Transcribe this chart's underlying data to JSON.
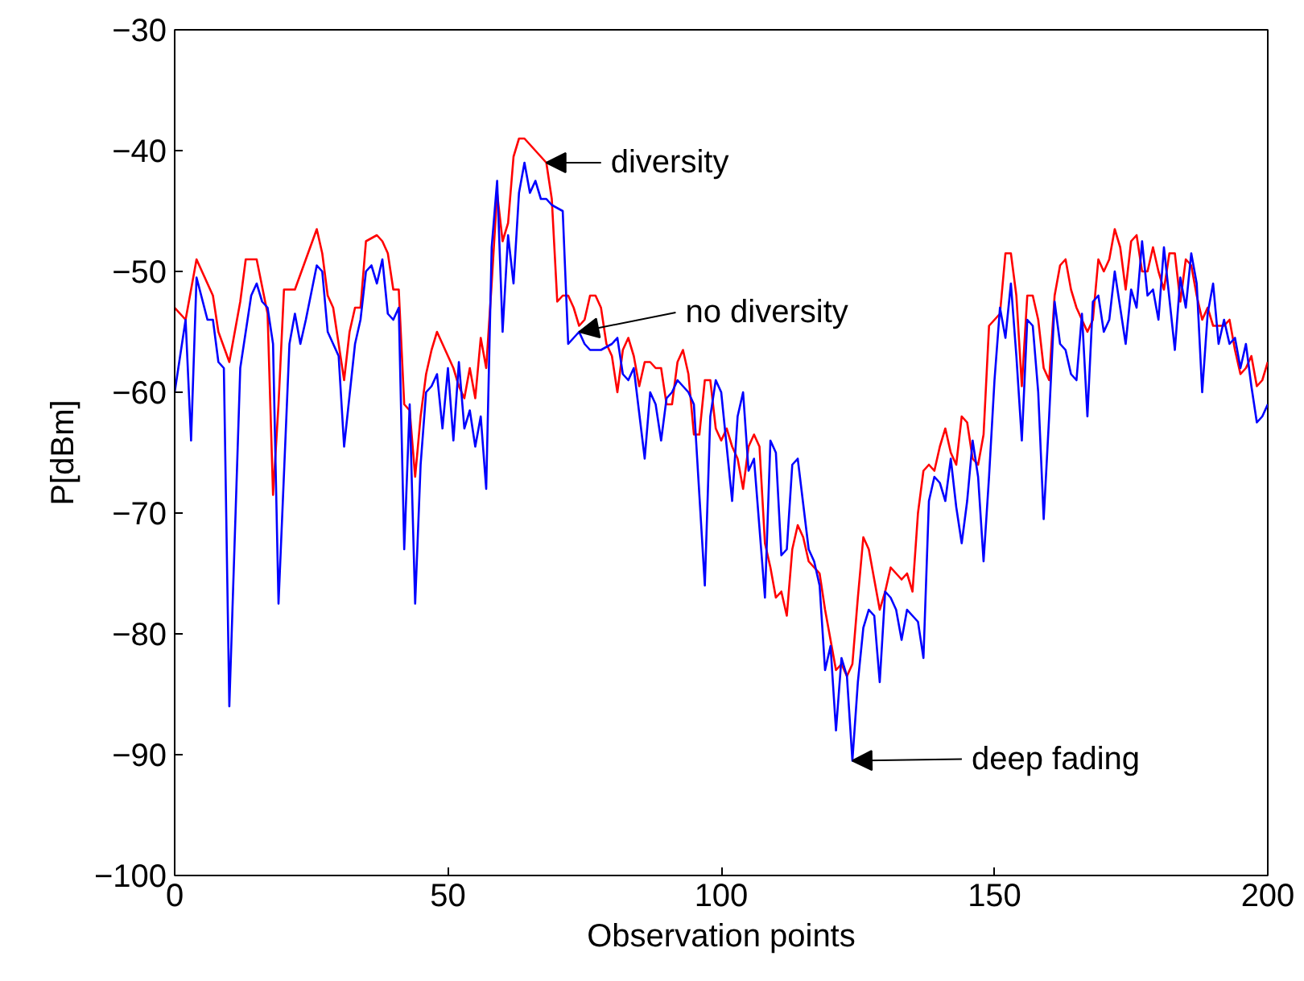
{
  "chart_data": {
    "type": "line",
    "xlabel": "Observation points",
    "ylabel": "P[dBm]",
    "xlim": [
      0,
      200
    ],
    "xticks": [
      0,
      50,
      100,
      150,
      200
    ],
    "ylim": [
      -100,
      -30
    ],
    "yticks": [
      -100,
      -90,
      -80,
      -70,
      -60,
      -50,
      -40,
      -30
    ],
    "grid": false,
    "marker": "none",
    "line_style": "solid",
    "series": [
      {
        "color": "#ff0000",
        "x": [
          0,
          2,
          4,
          6,
          7,
          8,
          10,
          12,
          13,
          15,
          17,
          18,
          19,
          20,
          22,
          24,
          26,
          27,
          28,
          29,
          31,
          32,
          33,
          34,
          35,
          37,
          38,
          39,
          40,
          41,
          42,
          43,
          44,
          45,
          46,
          47,
          48,
          49,
          50,
          51,
          52,
          53,
          54,
          55,
          56,
          57,
          58,
          59,
          60,
          61,
          62,
          63,
          64,
          65,
          66,
          67,
          68,
          69,
          70,
          71,
          72,
          73,
          74,
          75,
          76,
          77,
          78,
          79,
          80,
          81,
          82,
          83,
          84,
          85,
          86,
          87,
          88,
          89,
          90,
          91,
          92,
          93,
          94,
          95,
          96,
          97,
          98,
          99,
          100,
          101,
          102,
          103,
          104,
          105,
          106,
          107,
          108,
          109,
          110,
          111,
          112,
          113,
          114,
          115,
          116,
          117,
          118,
          119,
          120,
          121,
          122,
          123,
          124,
          125,
          126,
          127,
          128,
          129,
          130,
          131,
          132,
          133,
          134,
          135,
          136,
          137,
          138,
          139,
          140,
          141,
          142,
          143,
          144,
          145,
          146,
          147,
          148,
          149,
          150,
          151,
          152,
          153,
          154,
          155,
          156,
          157,
          158,
          159,
          160,
          161,
          162,
          163,
          164,
          165,
          166,
          167,
          168,
          169,
          170,
          171,
          172,
          173,
          174,
          175,
          176,
          177,
          178,
          179,
          180,
          181,
          182,
          183,
          184,
          185,
          186,
          187,
          188,
          189,
          190,
          191,
          192,
          193,
          194,
          195,
          196,
          197,
          198,
          199,
          200
        ],
        "values": [
          -53,
          -54,
          -49,
          -51,
          -52,
          -55,
          -57.5,
          -52.5,
          -49,
          -49,
          -53.5,
          -68.5,
          -61,
          -51.5,
          -51.5,
          -49,
          -46.5,
          -48.5,
          -52,
          -53,
          -59,
          -55,
          -53,
          -53,
          -47.5,
          -47,
          -47.5,
          -48.5,
          -51.5,
          -51.5,
          -61,
          -61.5,
          -67,
          -62,
          -58.5,
          -56.5,
          -55,
          -56,
          -57,
          -58,
          -59.5,
          -60.5,
          -58,
          -60.5,
          -55.5,
          -58,
          -51,
          -43.5,
          -47.5,
          -46,
          -40.5,
          -39,
          -39,
          -39.5,
          -40,
          -40.5,
          -41,
          -44,
          -52.5,
          -52,
          -52,
          -53,
          -54.5,
          -54,
          -52,
          -52,
          -53,
          -56,
          -57,
          -60,
          -56.5,
          -55.5,
          -57,
          -59.5,
          -57.5,
          -57.5,
          -58,
          -58,
          -61,
          -61,
          -57.5,
          -56.5,
          -58.5,
          -63.5,
          -63.5,
          -59,
          -59,
          -63,
          -64,
          -63,
          -64.5,
          -65.5,
          -68,
          -64.5,
          -63.5,
          -64.5,
          -72.5,
          -74.5,
          -77,
          -76.5,
          -78.5,
          -73,
          -71,
          -72,
          -74,
          -74.5,
          -75,
          -78,
          -80.5,
          -83,
          -82.5,
          -83.5,
          -82.5,
          -77,
          -72,
          -73,
          -75.5,
          -78,
          -76.5,
          -74.5,
          -75,
          -75.5,
          -75,
          -76.5,
          -70,
          -66.5,
          -66,
          -66.5,
          -64.5,
          -63,
          -65,
          -66,
          -62,
          -62.5,
          -65.5,
          -66,
          -63.5,
          -54.5,
          -54,
          -53.5,
          -48.5,
          -48.5,
          -52,
          -59.5,
          -52,
          -52,
          -54,
          -58,
          -59,
          -52,
          -49.5,
          -49,
          -51.5,
          -53,
          -54,
          -55,
          -54,
          -49,
          -50,
          -49,
          -46.5,
          -48,
          -51.5,
          -47.5,
          -47,
          -50,
          -50,
          -48,
          -50,
          -51.5,
          -48.5,
          -48.5,
          -52.5,
          -49,
          -49.5,
          -52,
          -54,
          -53,
          -54.5,
          -54.5,
          -54.5,
          -54,
          -56.5,
          -58.5,
          -58,
          -57,
          -59.5,
          -59,
          -57.5
        ]
      },
      {
        "color": "#0000ff",
        "x": [
          0,
          1,
          2,
          3,
          4,
          6,
          7,
          8,
          9,
          10,
          12,
          14,
          15,
          16,
          17,
          18,
          19,
          21,
          22,
          23,
          24,
          26,
          27,
          28,
          29,
          30,
          31,
          33,
          34,
          35,
          36,
          37,
          38,
          39,
          40,
          41,
          42,
          43,
          44,
          45,
          46,
          47,
          48,
          49,
          50,
          51,
          52,
          53,
          54,
          55,
          56,
          57,
          58,
          59,
          60,
          61,
          62,
          63,
          64,
          65,
          66,
          67,
          68,
          69,
          71,
          72,
          73,
          74,
          75,
          76,
          78,
          80,
          81,
          82,
          83,
          84,
          86,
          87,
          88,
          89,
          90,
          91,
          92,
          94,
          95,
          97,
          98,
          99,
          100,
          101,
          102,
          103,
          104,
          105,
          106,
          108,
          109,
          110,
          111,
          112,
          113,
          114,
          116,
          117,
          118,
          119,
          120,
          121,
          122,
          123,
          124,
          125,
          126,
          127,
          128,
          129,
          130,
          131,
          132,
          133,
          134,
          135,
          136,
          137,
          138,
          139,
          140,
          141,
          142,
          143,
          144,
          145,
          146,
          147,
          148,
          149,
          150,
          151,
          152,
          153,
          154,
          155,
          156,
          157,
          158,
          159,
          160,
          161,
          162,
          163,
          164,
          165,
          166,
          167,
          168,
          169,
          170,
          171,
          172,
          173,
          174,
          175,
          176,
          177,
          178,
          179,
          180,
          181,
          183,
          184,
          185,
          186,
          187,
          188,
          189,
          190,
          191,
          192,
          193,
          194,
          195,
          196,
          197,
          198,
          199,
          200
        ],
        "values": [
          -60,
          -57,
          -54,
          -64,
          -50.5,
          -54,
          -54,
          -57.5,
          -58,
          -86,
          -58,
          -52,
          -51,
          -52.5,
          -53,
          -56,
          -77.5,
          -56,
          -53.5,
          -56,
          -54,
          -49.5,
          -50,
          -55,
          -56,
          -57,
          -64.5,
          -56,
          -54,
          -50,
          -49.5,
          -51,
          -49,
          -53.5,
          -54,
          -53,
          -73,
          -61,
          -77.5,
          -66,
          -60,
          -59.5,
          -58.5,
          -63,
          -58,
          -64,
          -57.5,
          -63,
          -61.5,
          -64.5,
          -62,
          -68,
          -48,
          -42.5,
          -55,
          -47,
          -51,
          -43.5,
          -41,
          -43.5,
          -42.5,
          -44,
          -44,
          -44.5,
          -45,
          -56,
          -55.5,
          -55,
          -56,
          -56.5,
          -56.5,
          -56,
          -55.5,
          -58.5,
          -59,
          -58,
          -65.5,
          -60,
          -61,
          -64,
          -60.5,
          -60,
          -59,
          -60,
          -61,
          -76,
          -62,
          -59,
          -60,
          -64.5,
          -69,
          -62,
          -60,
          -66.5,
          -65.5,
          -77,
          -64,
          -65,
          -73.5,
          -73,
          -66,
          -65.5,
          -73,
          -74,
          -76,
          -83,
          -81,
          -88,
          -82,
          -83.5,
          -90.5,
          -84,
          -79.5,
          -78,
          -78.5,
          -84,
          -76.5,
          -77,
          -78,
          -80.5,
          -78,
          -78.5,
          -79,
          -82,
          -69,
          -67,
          -67.5,
          -69,
          -65.5,
          -69.5,
          -72.5,
          -69,
          -64,
          -67,
          -74,
          -67,
          -59,
          -53,
          -55.5,
          -51,
          -57,
          -64,
          -54,
          -54.5,
          -60,
          -70.5,
          -62,
          -52.5,
          -56,
          -56.5,
          -58.5,
          -59,
          -53.5,
          -62,
          -52.5,
          -52,
          -55,
          -54,
          -50,
          -53,
          -56,
          -51.5,
          -53,
          -47.5,
          -52,
          -51.5,
          -54,
          -48,
          -56.5,
          -50.5,
          -53,
          -48.5,
          -51,
          -60,
          -53.5,
          -51,
          -56,
          -54,
          -56,
          -55.5,
          -58,
          -56,
          -59.5,
          -62.5,
          -62,
          -61
        ]
      }
    ],
    "annotations": [
      {
        "text": "diversity",
        "x": 68,
        "y": -41
      },
      {
        "text": "no diversity",
        "x": 74,
        "y": -55
      },
      {
        "text": "deep fading",
        "x": 124,
        "y": -90.5
      }
    ]
  }
}
